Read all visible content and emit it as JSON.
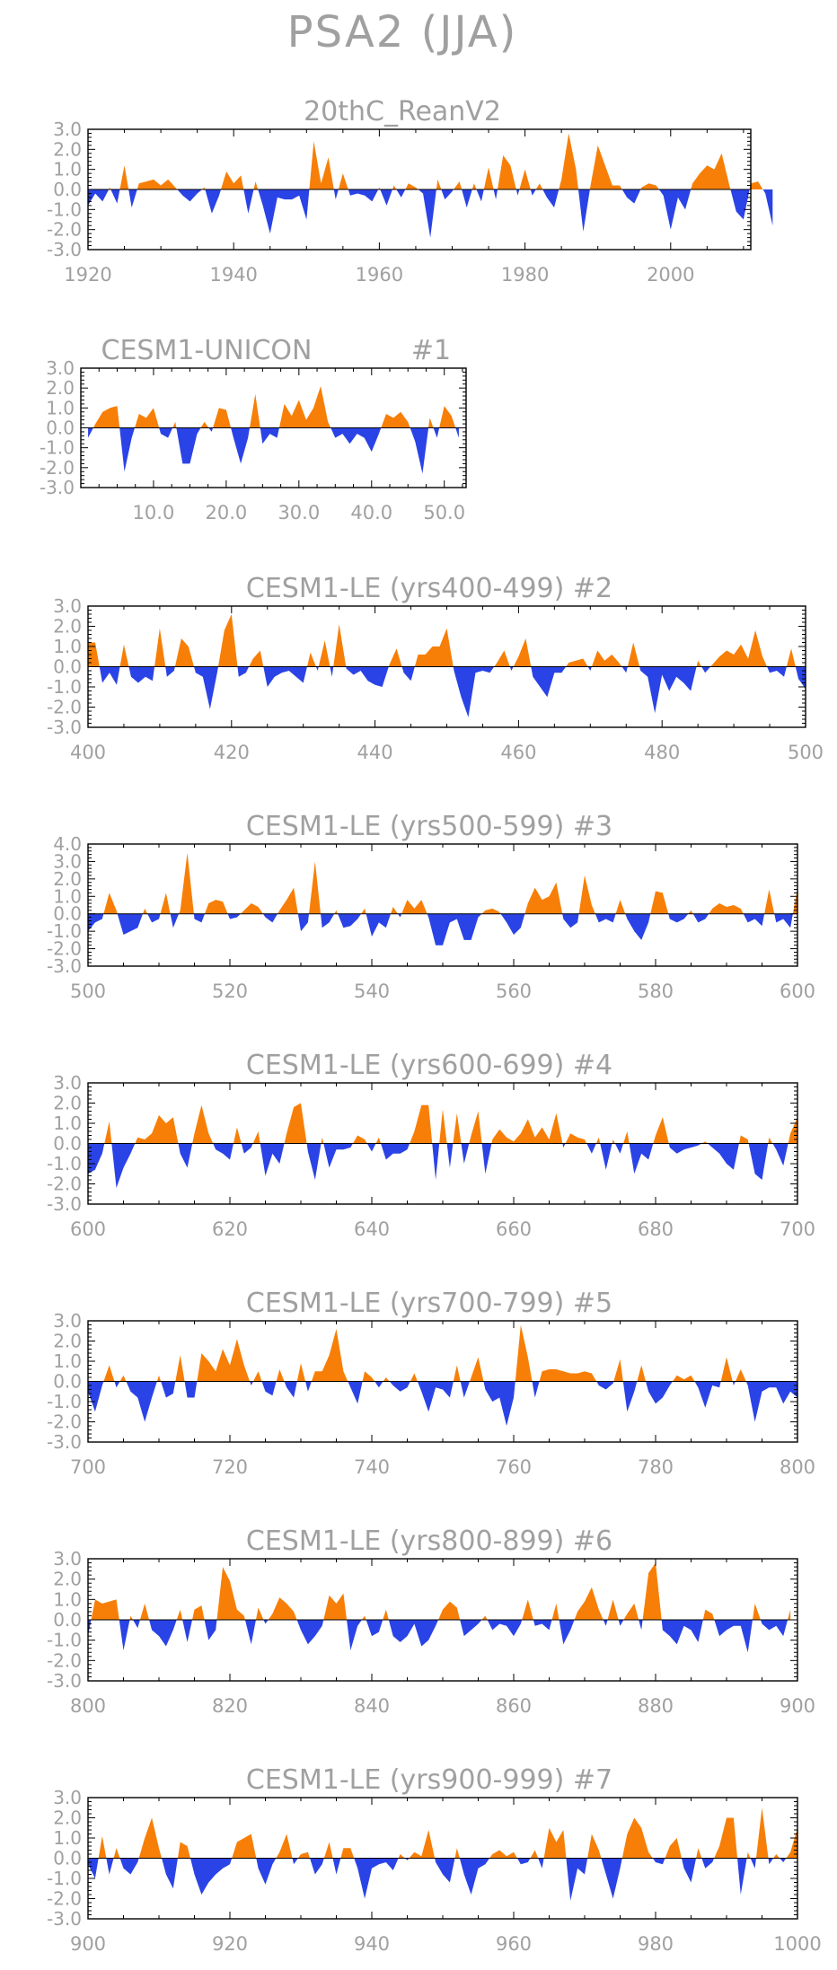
{
  "title": "PSA2 (JJA)",
  "colors": {
    "positive": "#f77f07",
    "negative": "#2a43e6",
    "text": "#a0a0a0"
  },
  "chart_data": [
    {
      "id": "p1",
      "type": "area",
      "title": "20thC_ReanV2",
      "member": "",
      "ylim": [
        -3,
        3
      ],
      "yticks": [
        "3.0",
        "2.0",
        "1.0",
        "0.0",
        "-1.0",
        "-2.0",
        "-3.0"
      ],
      "xlim": [
        1920,
        2011
      ],
      "xticks": [
        1920,
        1940,
        1960,
        1980,
        2000
      ],
      "xtick_labels": [
        "1920",
        "1940",
        "1960",
        "1980",
        "2000"
      ],
      "x_start": 1920,
      "x_step": 1,
      "values": [
        -0.8,
        -0.2,
        -0.6,
        0.1,
        -0.7,
        1.2,
        -0.9,
        0.3,
        0.4,
        0.5,
        0.2,
        0.5,
        0.1,
        -0.3,
        -0.6,
        -0.2,
        0.1,
        -1.2,
        -0.3,
        0.9,
        0.3,
        0.7,
        -1.2,
        0.4,
        -0.8,
        -2.2,
        -0.4,
        -0.5,
        -0.5,
        -0.3,
        -1.5,
        2.4,
        0.3,
        1.6,
        -0.5,
        0.8,
        -0.3,
        -0.2,
        -0.3,
        -0.6,
        0.1,
        -0.8,
        0.2,
        -0.4,
        0.3,
        0.1,
        -0.2,
        -2.4,
        0.5,
        -0.5,
        -0.1,
        0.4,
        -0.9,
        0.3,
        -0.6,
        1.1,
        -0.5,
        1.7,
        1.2,
        -0.3,
        1.0,
        -0.3,
        0.3,
        -0.4,
        -0.9,
        0.5,
        2.8,
        1.0,
        -2.1,
        0.2,
        2.2,
        1.2,
        0.2,
        0.2,
        -0.4,
        -0.7,
        0.1,
        0.3,
        0.2,
        -0.3,
        -2.0,
        -0.4,
        -1.0,
        0.3,
        0.8,
        1.2,
        1.0,
        1.8,
        0.3,
        -1.1,
        -1.5,
        0.3,
        0.4,
        -0.2,
        -1.8
      ]
    },
    {
      "id": "p2",
      "type": "area",
      "title": "CESM1-UNICON",
      "member": "#1",
      "ylim": [
        -3,
        3
      ],
      "yticks": [
        "3.0",
        "2.0",
        "1.0",
        "0.0",
        "-1.0",
        "-2.0",
        "-3.0"
      ],
      "xlim": [
        0,
        53
      ],
      "xticks": [
        10,
        20,
        30,
        40,
        50
      ],
      "xtick_labels": [
        "10.0",
        "20.0",
        "30.0",
        "40.0",
        "50.0"
      ],
      "x_start": 1,
      "x_step": 1,
      "values": [
        -0.5,
        0.2,
        0.8,
        1.0,
        1.1,
        -2.2,
        -0.5,
        0.7,
        0.5,
        1.0,
        -0.3,
        -0.5,
        0.3,
        -1.8,
        -1.8,
        -0.3,
        0.3,
        -0.2,
        1.0,
        0.9,
        -0.5,
        -1.8,
        -0.5,
        1.7,
        -0.8,
        -0.3,
        -0.5,
        1.2,
        0.6,
        1.4,
        0.4,
        1.0,
        2.1,
        0.3,
        -0.5,
        -0.3,
        -0.8,
        -0.3,
        -0.5,
        -1.2,
        -0.3,
        0.7,
        0.5,
        0.8,
        0.3,
        -0.7,
        -2.3,
        0.5,
        -0.5,
        1.1,
        0.6,
        -0.5
      ]
    },
    {
      "id": "p3",
      "type": "area",
      "title": "CESM1-LE (yrs400-499)",
      "member": "#2",
      "ylim": [
        -3,
        3
      ],
      "yticks": [
        "3.0",
        "2.0",
        "1.0",
        "0.0",
        "-1.0",
        "-2.0",
        "-3.0"
      ],
      "xlim": [
        400,
        500
      ],
      "xticks": [
        400,
        420,
        440,
        460,
        480,
        500
      ],
      "xtick_labels": [
        "400",
        "420",
        "440",
        "460",
        "480",
        "500"
      ],
      "x_start": 400,
      "x_step": 1,
      "values": [
        1.2,
        1.2,
        -0.8,
        -0.3,
        -0.9,
        1.1,
        -0.5,
        -0.8,
        -0.5,
        -0.7,
        1.9,
        -0.5,
        -0.2,
        1.4,
        1.0,
        -0.3,
        -0.5,
        -2.1,
        -0.3,
        1.8,
        2.6,
        -0.5,
        -0.3,
        0.4,
        0.8,
        -1.0,
        -0.5,
        -0.3,
        -0.2,
        -0.5,
        -0.8,
        0.7,
        -0.2,
        1.3,
        -0.5,
        2.1,
        -0.1,
        -0.4,
        -0.2,
        -0.7,
        -0.9,
        -1.0,
        0.1,
        0.9,
        -0.3,
        -0.7,
        0.6,
        0.6,
        1.0,
        1.0,
        1.9,
        -0.2,
        -1.5,
        -2.5,
        -0.3,
        -0.2,
        -0.3,
        0.2,
        0.8,
        -0.2,
        0.5,
        1.4,
        -0.5,
        -1.0,
        -1.5,
        -0.3,
        -0.3,
        0.2,
        0.3,
        0.4,
        -0.2,
        0.8,
        0.3,
        0.6,
        0.2,
        -0.3,
        1.2,
        -0.2,
        -0.5,
        -2.3,
        -0.4,
        -1.2,
        -0.5,
        -0.8,
        -1.2,
        0.3,
        -0.3,
        0.1,
        0.5,
        0.8,
        0.6,
        1.1,
        0.4,
        1.8,
        0.5,
        -0.3,
        -0.2,
        -0.5,
        0.9,
        -0.6,
        -1.1
      ]
    },
    {
      "id": "p4",
      "type": "area",
      "title": "CESM1-LE (yrs500-599)",
      "member": "#3",
      "ylim": [
        -3,
        4
      ],
      "yticks": [
        "4.0",
        "3.0",
        "2.0",
        "1.0",
        "0.0",
        "-1.0",
        "-2.0",
        "-3.0"
      ],
      "xlim": [
        500,
        600
      ],
      "xticks": [
        500,
        520,
        540,
        560,
        580,
        600
      ],
      "xtick_labels": [
        "500",
        "520",
        "540",
        "560",
        "580",
        "600"
      ],
      "x_start": 500,
      "x_step": 1,
      "values": [
        -1.0,
        -0.5,
        -0.3,
        1.2,
        0.2,
        -1.2,
        -1.0,
        -0.8,
        0.3,
        -0.5,
        -0.3,
        1.2,
        -0.8,
        0.2,
        3.5,
        -0.3,
        -0.5,
        0.6,
        0.8,
        0.7,
        -0.3,
        -0.2,
        0.2,
        0.6,
        0.4,
        -0.2,
        -0.5,
        0.2,
        0.8,
        1.5,
        -1.0,
        -0.5,
        3.0,
        -0.8,
        -0.5,
        0.2,
        -0.8,
        -0.7,
        -0.3,
        0.3,
        -1.3,
        -0.5,
        -0.8,
        0.4,
        -0.2,
        0.8,
        0.3,
        0.8,
        -0.2,
        -1.8,
        -1.8,
        -0.5,
        -0.3,
        -1.5,
        -1.5,
        -0.2,
        0.2,
        0.3,
        0.1,
        -0.5,
        -1.2,
        -0.8,
        0.6,
        1.5,
        0.8,
        1.0,
        1.8,
        -0.3,
        -0.8,
        -0.5,
        2.2,
        0.5,
        -0.5,
        -0.3,
        -0.5,
        0.8,
        -0.3,
        -1.0,
        -1.5,
        -0.5,
        1.3,
        1.2,
        -0.3,
        -0.5,
        -0.3,
        0.2,
        -0.5,
        -0.3,
        0.3,
        0.6,
        0.4,
        0.5,
        0.3,
        -0.5,
        -0.3,
        -0.7,
        1.4,
        -0.5,
        -0.3,
        -0.8,
        1.5
      ]
    },
    {
      "id": "p5",
      "type": "area",
      "title": "CESM1-LE (yrs600-699)",
      "member": "#4",
      "ylim": [
        -3,
        3
      ],
      "yticks": [
        "3.0",
        "2.0",
        "1.0",
        "0.0",
        "-1.0",
        "-2.0",
        "-3.0"
      ],
      "xlim": [
        600,
        700
      ],
      "xticks": [
        600,
        620,
        640,
        660,
        680,
        700
      ],
      "xtick_labels": [
        "600",
        "620",
        "640",
        "660",
        "680",
        "700"
      ],
      "x_start": 600,
      "x_step": 1,
      "values": [
        -1.5,
        -1.3,
        -0.5,
        1.1,
        -2.2,
        -1.2,
        -0.5,
        0.3,
        0.2,
        0.5,
        1.4,
        1.0,
        1.3,
        -0.5,
        -1.2,
        0.5,
        1.9,
        0.5,
        -0.3,
        -0.5,
        -0.8,
        0.8,
        -0.5,
        -0.2,
        0.6,
        -1.6,
        -0.5,
        -1.0,
        0.5,
        1.8,
        2.0,
        -0.4,
        -1.8,
        0.3,
        -1.2,
        -0.3,
        -0.3,
        -0.2,
        0.4,
        0.2,
        -0.4,
        0.3,
        -0.8,
        -0.5,
        -0.5,
        -0.3,
        0.6,
        1.9,
        1.9,
        -1.8,
        1.7,
        -1.2,
        1.5,
        -1.0,
        0.4,
        1.6,
        -1.5,
        0.2,
        0.7,
        0.3,
        0.1,
        0.5,
        1.2,
        0.3,
        0.8,
        0.2,
        1.5,
        -0.2,
        0.5,
        0.3,
        0.2,
        -0.5,
        0.3,
        -1.3,
        0.2,
        -0.5,
        0.6,
        -1.5,
        -0.5,
        -0.8,
        0.4,
        1.3,
        -0.2,
        -0.5,
        -0.3,
        -0.2,
        -0.1,
        0.1,
        -0.2,
        -0.5,
        -1.0,
        -1.3,
        0.4,
        0.2,
        -1.5,
        -1.8,
        0.3,
        -0.3,
        -1.1,
        0.5,
        1.3
      ]
    },
    {
      "id": "p6",
      "type": "area",
      "title": "CESM1-LE (yrs700-799)",
      "member": "#5",
      "ylim": [
        -3,
        3
      ],
      "yticks": [
        "3.0",
        "2.0",
        "1.0",
        "0.0",
        "-1.0",
        "-2.0",
        "-3.0"
      ],
      "xlim": [
        700,
        800
      ],
      "xticks": [
        700,
        720,
        740,
        760,
        780,
        800
      ],
      "xtick_labels": [
        "700",
        "720",
        "740",
        "760",
        "780",
        "800"
      ],
      "x_start": 700,
      "x_step": 1,
      "values": [
        -0.5,
        -1.5,
        -0.2,
        0.8,
        -0.3,
        0.3,
        -0.5,
        -0.8,
        -2.0,
        -0.8,
        0.3,
        -0.8,
        -0.6,
        1.3,
        -0.8,
        -0.8,
        1.4,
        1.0,
        0.5,
        1.6,
        0.8,
        2.1,
        0.8,
        -0.2,
        0.5,
        -0.5,
        -0.7,
        0.6,
        -0.3,
        -0.8,
        0.9,
        -0.5,
        0.5,
        0.5,
        1.3,
        2.6,
        0.5,
        -0.3,
        -1.1,
        0.5,
        0.2,
        -0.3,
        0.2,
        -0.2,
        -0.5,
        -0.3,
        0.4,
        -0.5,
        -1.5,
        -0.3,
        -0.4,
        -0.8,
        0.8,
        -0.8,
        0.2,
        1.2,
        -0.4,
        -1.0,
        -0.8,
        -2.2,
        -0.8,
        2.8,
        1.2,
        -0.8,
        0.5,
        0.6,
        0.6,
        0.5,
        0.4,
        0.4,
        0.5,
        0.4,
        -0.2,
        -0.4,
        -0.1,
        1.1,
        -1.5,
        -0.5,
        0.8,
        -0.5,
        -1.1,
        -0.8,
        -0.2,
        0.3,
        0.1,
        0.3,
        -0.3,
        -1.3,
        -0.2,
        -0.3,
        1.2,
        -0.2,
        0.6,
        -0.2,
        -2.0,
        -0.5,
        -0.3,
        -0.3,
        -1.1,
        -0.5,
        -0.8
      ]
    },
    {
      "id": "p7",
      "type": "area",
      "title": "CESM1-LE (yrs800-899)",
      "member": "#6",
      "ylim": [
        -3,
        3
      ],
      "yticks": [
        "3.0",
        "2.0",
        "1.0",
        "0.0",
        "-1.0",
        "-2.0",
        "-3.0"
      ],
      "xlim": [
        800,
        900
      ],
      "xticks": [
        800,
        820,
        840,
        860,
        880,
        900
      ],
      "xtick_labels": [
        "800",
        "820",
        "840",
        "860",
        "880",
        "900"
      ],
      "x_start": 800,
      "x_step": 1,
      "values": [
        -0.8,
        1.0,
        0.8,
        0.9,
        1.0,
        -1.5,
        0.2,
        -0.4,
        0.8,
        -0.5,
        -0.8,
        -1.3,
        -0.5,
        0.5,
        -1.1,
        0.5,
        0.7,
        -1.0,
        -0.5,
        2.6,
        1.9,
        0.5,
        0.2,
        -1.2,
        0.6,
        -0.2,
        0.3,
        1.1,
        0.8,
        0.4,
        -0.5,
        -1.2,
        -0.8,
        -0.3,
        1.2,
        0.8,
        1.3,
        -1.5,
        -0.3,
        0.2,
        -0.8,
        -0.6,
        0.5,
        -0.8,
        -1.1,
        -0.8,
        -0.2,
        -1.3,
        -1.0,
        -0.3,
        0.5,
        0.9,
        0.6,
        -0.8,
        -0.5,
        -0.2,
        0.2,
        -0.5,
        -0.2,
        -0.3,
        -0.8,
        -0.2,
        1.0,
        -0.3,
        -0.2,
        -0.5,
        0.8,
        -1.2,
        -0.5,
        0.4,
        0.9,
        1.6,
        0.5,
        -0.3,
        1.0,
        -0.3,
        0.3,
        0.8,
        -0.5,
        2.3,
        2.8,
        -0.5,
        -0.8,
        -1.2,
        -0.3,
        -0.5,
        -1.1,
        0.5,
        0.3,
        -0.8,
        -0.5,
        -0.3,
        -0.3,
        -1.6,
        0.8,
        -0.2,
        -0.5,
        -0.3,
        -0.8,
        0.5
      ]
    },
    {
      "id": "p8",
      "type": "area",
      "title": "CESM1-LE (yrs900-999)",
      "member": "#7",
      "ylim": [
        -3,
        3
      ],
      "yticks": [
        "3.0",
        "2.0",
        "1.0",
        "0.0",
        "-1.0",
        "-2.0",
        "-3.0"
      ],
      "xlim": [
        900,
        1000
      ],
      "xticks": [
        900,
        920,
        940,
        960,
        980,
        1000
      ],
      "xtick_labels": [
        "900",
        "920",
        "940",
        "960",
        "980",
        "1000"
      ],
      "x_start": 900,
      "x_step": 1,
      "values": [
        -0.3,
        -1.0,
        1.1,
        -0.8,
        0.5,
        -0.5,
        -0.8,
        -0.2,
        1.0,
        2.0,
        0.5,
        -0.8,
        -1.5,
        0.8,
        0.6,
        -0.8,
        -1.8,
        -1.2,
        -0.8,
        -0.5,
        -0.3,
        0.8,
        1.0,
        1.2,
        -0.5,
        -1.3,
        -0.3,
        0.3,
        1.2,
        -0.3,
        0.2,
        0.3,
        -0.8,
        -0.3,
        0.8,
        -0.8,
        0.5,
        0.5,
        -0.5,
        -2.0,
        -0.5,
        -0.3,
        -0.2,
        -0.6,
        0.2,
        -0.1,
        0.3,
        0.1,
        1.4,
        -0.2,
        -0.8,
        -1.2,
        0.5,
        -0.8,
        -1.8,
        -0.5,
        -0.3,
        0.2,
        0.4,
        0.1,
        0.3,
        -0.3,
        -0.2,
        0.4,
        -0.5,
        1.5,
        0.8,
        1.4,
        -2.1,
        -0.5,
        -0.8,
        1.2,
        0.4,
        -0.8,
        -2.0,
        -0.5,
        1.2,
        2.0,
        1.5,
        0.3,
        -0.2,
        -0.3,
        0.6,
        1.0,
        -0.5,
        -1.2,
        0.5,
        -0.5,
        -0.2,
        0.6,
        2.0,
        2.0,
        -1.8,
        0.3,
        -0.5,
        2.5,
        -0.3,
        0.2,
        -0.2,
        0.3,
        1.5
      ]
    }
  ]
}
